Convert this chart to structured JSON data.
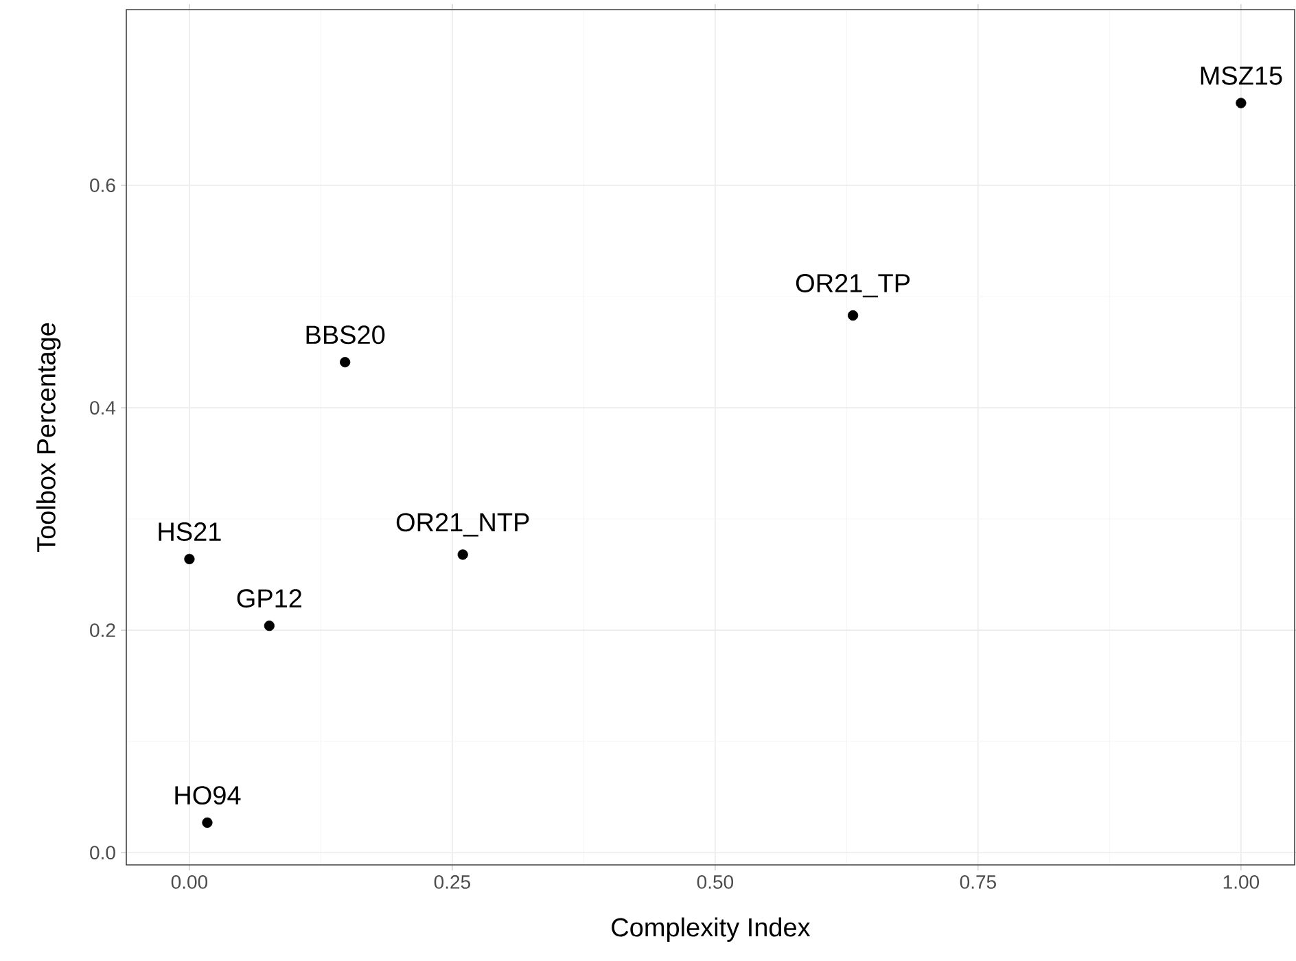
{
  "chart_data": {
    "type": "scatter",
    "xlabel": "Complexity Index",
    "ylabel": "Toolbox Percentage",
    "x": [
      1.0,
      0.631,
      0.148,
      0.26,
      0.0,
      0.076,
      0.017
    ],
    "series": [
      {
        "color": "#000000",
        "values": [
          0.674,
          0.483,
          0.441,
          0.268,
          0.264,
          0.204,
          0.027
        ]
      }
    ],
    "annotations": [
      {
        "text": "MSZ15",
        "x": 1.0,
        "y": 0.674
      },
      {
        "text": "OR21_TP",
        "x": 0.631,
        "y": 0.483
      },
      {
        "text": "BBS20",
        "x": 0.148,
        "y": 0.441
      },
      {
        "text": "OR21_NTP",
        "x": 0.26,
        "y": 0.268
      },
      {
        "text": "HS21",
        "x": 0.0,
        "y": 0.264
      },
      {
        "text": "GP12",
        "x": 0.076,
        "y": 0.204
      },
      {
        "text": "HO94",
        "x": 0.017,
        "y": 0.027
      }
    ],
    "xlim": [
      -0.06,
      1.051
    ],
    "ylim": [
      -0.011,
      0.758
    ],
    "xticks": [
      {
        "value": 0,
        "label": "0.00"
      },
      {
        "value": 0.25,
        "label": "0.25"
      },
      {
        "value": 0.5,
        "label": "0.50"
      },
      {
        "value": 0.75,
        "label": "0.75"
      },
      {
        "value": 1,
        "label": "1.00"
      }
    ],
    "yticks": [
      {
        "value": 0,
        "label": "0.0"
      },
      {
        "value": 0.2,
        "label": "0.2"
      },
      {
        "value": 0.4,
        "label": "0.4"
      },
      {
        "value": 0.6,
        "label": "0.6"
      }
    ],
    "grid": true,
    "marker": "circle"
  }
}
